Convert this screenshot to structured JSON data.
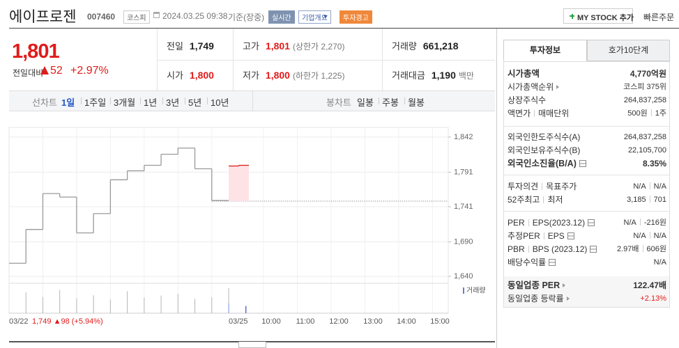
{
  "header": {
    "name": "에이프로젠",
    "code": "007460",
    "market": "코스피",
    "datetime": "2024.03.25 09:38",
    "basis": "기준(장중)",
    "badges": [
      "실시간",
      "기업개요",
      "투자경고"
    ],
    "my_stock": "MY STOCK 추가",
    "quick_order": "빠른주문"
  },
  "price": {
    "current": "1,801",
    "change_label": "전일대비",
    "change": "52",
    "change_rate": "+2.97%"
  },
  "quotes": [
    {
      "label": "전일",
      "value": "1,749"
    },
    {
      "label": "고가",
      "value": "1,801",
      "note": "(상한가 2,270)",
      "color": "#e01b1b"
    },
    {
      "label": "거래량",
      "value": "661,218"
    },
    {
      "label": "시가",
      "value": "1,800",
      "color": "#e01b1b"
    },
    {
      "label": "저가",
      "value": "1,800",
      "note": "(하한가 1,225)",
      "color": "#e01b1b"
    },
    {
      "label": "거래대금",
      "value": "1,190",
      "note": "백만"
    }
  ],
  "chart_tabs": {
    "line_label": "선차트",
    "line_periods": [
      "1일",
      "1주일",
      "3개월",
      "1년",
      "3년",
      "5년",
      "10년"
    ],
    "line_active": 0,
    "candle_label": "봉차트",
    "candle_periods": [
      "일봉",
      "주봉",
      "월봉"
    ]
  },
  "chart_data": {
    "type": "line",
    "ylim": [
      1630,
      1856
    ],
    "yticks": [
      {
        "value": 1842,
        "label": "1,842"
      },
      {
        "value": 1791,
        "label": "1,791"
      },
      {
        "value": 1741,
        "label": "1,741"
      },
      {
        "value": 1690,
        "label": "1,690"
      },
      {
        "value": 1640,
        "label": "1,640"
      }
    ],
    "grid": true,
    "x_labels": [
      "03/22",
      "03/25",
      "10:00",
      "11:00",
      "12:00",
      "13:00",
      "14:00",
      "15:00"
    ],
    "summary": "1,749 ▲98 (+5.94%)",
    "prev_close": 1749,
    "series": [
      {
        "color": "#999999",
        "values": [
          1659,
          1708,
          1760,
          1755,
          1703,
          1731,
          1780,
          1793,
          1801,
          1817,
          1826,
          1796,
          1750
        ],
        "volume": [
          820000,
          640000,
          910000,
          580000,
          700000,
          530000,
          860000,
          610000,
          690000,
          750000,
          560000,
          620000,
          980000
        ]
      },
      {
        "color": "#e01b1b",
        "values": [
          1800,
          1801
        ],
        "volume": [
          380000,
          281218
        ]
      }
    ],
    "volume_label": "거래량"
  },
  "invest_panel": {
    "tabs": [
      "투자정보",
      "호가10단계"
    ],
    "groups": [
      [
        {
          "label": [
            "시가총액"
          ],
          "value": [
            "4,770억원"
          ],
          "emphasis": true
        },
        {
          "label": [
            "시가총액순위"
          ],
          "value": [
            "코스피 375위"
          ],
          "arrow": true
        },
        {
          "label": [
            "상장주식수"
          ],
          "value": [
            "264,837,258"
          ]
        },
        {
          "label": [
            "액면가",
            "매매단위"
          ],
          "value": [
            "500원",
            "1주"
          ]
        }
      ],
      [
        {
          "label": [
            "외국인한도주식수(A)"
          ],
          "value": [
            "264,837,258"
          ]
        },
        {
          "label": [
            "외국인보유주식수(B)"
          ],
          "value": [
            "22,105,700"
          ]
        },
        {
          "label": [
            "외국인소진율(B/A)"
          ],
          "value": [
            "8.35%"
          ],
          "emphasis": true,
          "info": true
        }
      ],
      [
        {
          "label": [
            "투자의견",
            "목표주가"
          ],
          "value": [
            "N/A",
            "N/A"
          ]
        },
        {
          "label": [
            "52주최고",
            "최저"
          ],
          "value": [
            "3,185",
            "701"
          ]
        }
      ],
      [
        {
          "label": [
            "PER",
            "EPS(2023.12)"
          ],
          "value": [
            "N/A",
            "-216원"
          ],
          "info": true
        },
        {
          "label": [
            "추정PER",
            "EPS"
          ],
          "value": [
            "N/A",
            "N/A"
          ],
          "info": true
        },
        {
          "label": [
            "PBR",
            "BPS (2023.12)"
          ],
          "value": [
            "2.97배",
            "606원"
          ],
          "info": true
        },
        {
          "label": [
            "배당수익률"
          ],
          "value": [
            "N/A"
          ],
          "info": true
        }
      ],
      [
        {
          "label": [
            "동일업종 PER"
          ],
          "value": [
            "122.47배"
          ],
          "emphasis": true,
          "arrow": true
        },
        {
          "label": [
            "동일업종 등락률"
          ],
          "value": [
            "+2.13%"
          ],
          "arrow": true,
          "color": "#e01b1b"
        }
      ]
    ]
  }
}
